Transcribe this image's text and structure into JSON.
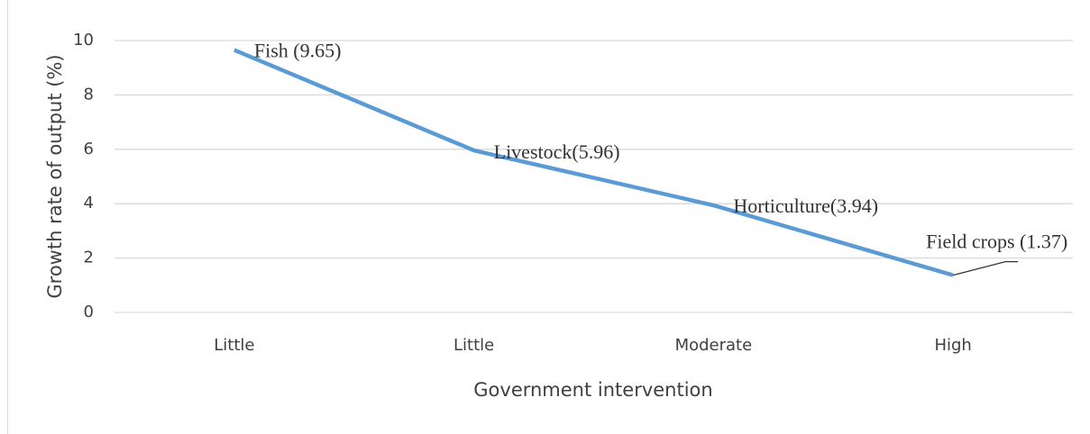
{
  "chart_data": {
    "type": "line",
    "x_label": "Government intervention",
    "y_label": "Growth rate of output (%)",
    "categories": [
      "Little",
      "Little",
      "Moderate",
      "High"
    ],
    "values": [
      9.65,
      5.96,
      3.94,
      1.37
    ],
    "value_labels": [
      "Fish (9.65)",
      "Livestock(5.96)",
      "Horticulture(3.94)",
      "Field crops (1.37)"
    ],
    "color": "#5b9bd5",
    "ylim": [
      0,
      10
    ],
    "yticks": [
      0,
      2,
      4,
      6,
      8,
      10
    ],
    "grid": true
  }
}
